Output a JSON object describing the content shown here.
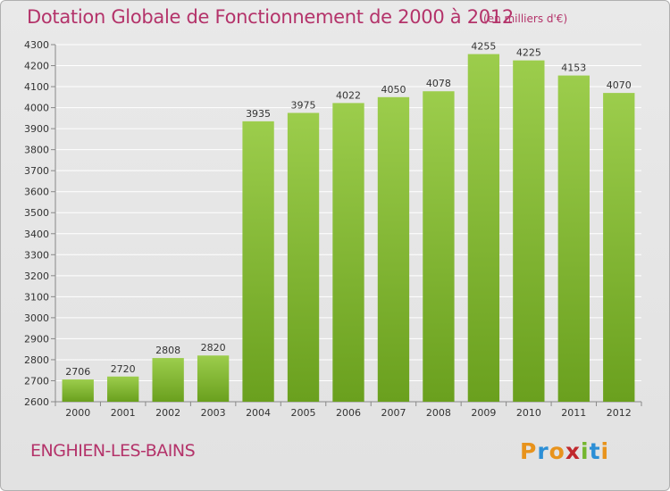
{
  "header": {
    "title": "Dotation Globale de Fonctionnement de 2000 à 2012",
    "unit": "(en milliers d'€)"
  },
  "footer": {
    "commune": "ENGHIEN-LES-BAINS",
    "logo": "Proxiti"
  },
  "colors": {
    "title": "#b4336a",
    "bar_light": "#9ccd4c",
    "bar_dark": "#6aa01e",
    "grid": "#ffffff",
    "logo": [
      "#e8931c",
      "#2c8fd6",
      "#e8931c",
      "#c0282d",
      "#74b62e",
      "#2c8fd6",
      "#e8931c"
    ]
  },
  "chart_data": {
    "type": "bar",
    "title": "Dotation Globale de Fonctionnement de 2000 à 2012",
    "xlabel": "",
    "ylabel": "",
    "categories": [
      "2000",
      "2001",
      "2002",
      "2003",
      "2004",
      "2005",
      "2006",
      "2007",
      "2008",
      "2009",
      "2010",
      "2011",
      "2012"
    ],
    "values": [
      2706,
      2720,
      2808,
      2820,
      3935,
      3975,
      4022,
      4050,
      4078,
      4255,
      4225,
      4153,
      4070
    ],
    "ylim": [
      2600,
      4300
    ],
    "ytick_step": 100,
    "grid": true,
    "data_labels": true
  }
}
